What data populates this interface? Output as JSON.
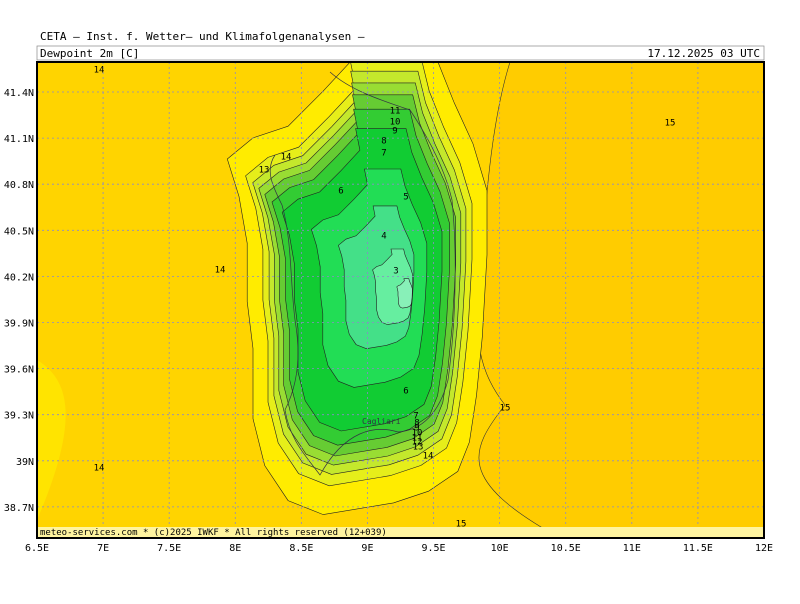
{
  "header": {
    "title": "CETA  –  Inst. f. Wetter–  und  Klimafolgenanalysen  –",
    "field": "Dewpoint 2m [C]",
    "valid": "17.12.2025 03 UTC"
  },
  "map": {
    "x_labels": [
      "6.5E",
      "7E",
      "7.5E",
      "8E",
      "8.5E",
      "9E",
      "9.5E",
      "10E",
      "10.5E",
      "11E",
      "11.5E",
      "12E"
    ],
    "y_labels": [
      "41.4N",
      "41.1N",
      "40.8N",
      "40.5N",
      "40.2N",
      "39.9N",
      "39.6N",
      "39.3N",
      "39N",
      "38.7N"
    ],
    "contour_labels": [
      14,
      11,
      10,
      9,
      8,
      7,
      15,
      14,
      13,
      6,
      5,
      4,
      14,
      3,
      6,
      15,
      7,
      8,
      9,
      10,
      11,
      12,
      13,
      14,
      14,
      15
    ],
    "places": [
      "Cagliari"
    ]
  },
  "footer": "meteo-services.com * (c)2025 IWKF * All rights reserved (12+039)"
}
